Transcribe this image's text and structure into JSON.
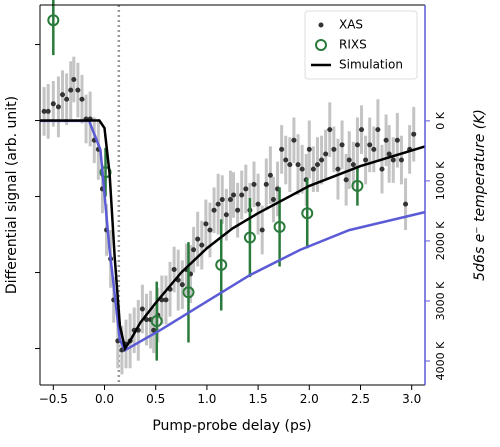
{
  "chart_data": {
    "type": "scatter",
    "xlabel": "Pump-probe delay (ps)",
    "ylabel": "Differential signal (arb. unit)",
    "y2label": "5d6s e⁻ temperature (K)",
    "xlim": [
      -0.63,
      3.13
    ],
    "xticks": [
      {
        "value": -0.5,
        "label": "−0.5"
      },
      {
        "value": 0,
        "label": "0.0"
      },
      {
        "value": 0.5,
        "label": "0.5"
      },
      {
        "value": 1,
        "label": "1.0"
      },
      {
        "value": 1.5,
        "label": "1.5"
      },
      {
        "value": 2,
        "label": "2.0"
      },
      {
        "value": 2.5,
        "label": "2.5"
      },
      {
        "value": 3,
        "label": "3.0"
      }
    ],
    "ylim": [
      -1.74,
      0.76
    ],
    "yticks": [
      0.5,
      0,
      -0.5,
      -1,
      -1.5
    ],
    "y2lim": [
      -1930,
      4400
    ],
    "y2_inverted": true,
    "y2color": "#5b5bd6",
    "y2ticks": [
      {
        "value": 0,
        "label": "0 K"
      },
      {
        "value": 1000,
        "label": "1000 K"
      },
      {
        "value": 2000,
        "label": "2000 K"
      },
      {
        "value": 3000,
        "label": "3000 K"
      },
      {
        "value": 4000,
        "label": "4000 K"
      }
    ],
    "vline": {
      "x": 0.14,
      "color": "#999999"
    },
    "legend": "upper right",
    "series": [
      {
        "name": "XAS",
        "type": "scatter",
        "marker": "dot",
        "color": "#333333",
        "error_color": "#c4c4c4",
        "x": [
          -0.59,
          -0.55,
          -0.5,
          -0.45,
          -0.41,
          -0.37,
          -0.33,
          -0.3,
          -0.26,
          -0.22,
          -0.18,
          -0.14,
          -0.1,
          -0.06,
          -0.02,
          0.02,
          0.06,
          0.09,
          0.13,
          0.17,
          0.21,
          0.25,
          0.29,
          0.33,
          0.37,
          0.41,
          0.45,
          0.48,
          0.52,
          0.56,
          0.6,
          0.64,
          0.68,
          0.72,
          0.76,
          0.8,
          0.84,
          0.87,
          0.91,
          0.95,
          0.99,
          1.03,
          1.07,
          1.11,
          1.15,
          1.19,
          1.23,
          1.26,
          1.3,
          1.34,
          1.38,
          1.42,
          1.46,
          1.5,
          1.54,
          1.58,
          1.62,
          1.65,
          1.69,
          1.73,
          1.77,
          1.81,
          1.85,
          1.89,
          1.93,
          1.97,
          2.0,
          2.04,
          2.08,
          2.12,
          2.16,
          2.2,
          2.24,
          2.28,
          2.32,
          2.36,
          2.39,
          2.43,
          2.47,
          2.51,
          2.55,
          2.59,
          2.63,
          2.67,
          2.71,
          2.75,
          2.78,
          2.82,
          2.86,
          2.9,
          2.94,
          2.98,
          3.02
        ],
        "values": [
          0.06,
          0.06,
          0.11,
          0.09,
          0.17,
          0.14,
          0.2,
          0.27,
          0.2,
          0.14,
          0.01,
          0.01,
          -0.13,
          -0.19,
          -0.45,
          -0.72,
          -0.91,
          -1.18,
          -1.45,
          -1.51,
          -1.47,
          -1.45,
          -1.38,
          -1.38,
          -1.24,
          -1.31,
          -1.31,
          -1.38,
          -1.28,
          -1.18,
          -1.18,
          -1.11,
          -0.98,
          -1.05,
          -1.08,
          -0.98,
          -1.01,
          -0.85,
          -0.78,
          -0.82,
          -0.68,
          -0.72,
          -0.59,
          -0.55,
          -0.52,
          -0.62,
          -0.52,
          -0.49,
          -0.59,
          -0.49,
          -0.45,
          -0.59,
          -0.42,
          -0.55,
          -0.72,
          -0.42,
          -0.36,
          -0.52,
          -0.45,
          -0.19,
          -0.26,
          -0.29,
          -0.13,
          -0.29,
          -0.32,
          -0.39,
          -0.19,
          -0.32,
          -0.29,
          -0.26,
          -0.22,
          -0.06,
          -0.19,
          -0.32,
          -0.16,
          -0.39,
          -0.26,
          -0.29,
          -0.16,
          -0.06,
          -0.26,
          -0.16,
          -0.19,
          -0.06,
          -0.32,
          -0.13,
          -0.22,
          -0.26,
          -0.13,
          -0.26,
          -0.55,
          -0.19,
          -0.09
        ],
        "errors": [
          0.16,
          0.18,
          0.15,
          0.2,
          0.16,
          0.17,
          0.19,
          0.15,
          0.18,
          0.16,
          0.16,
          0.18,
          0.15,
          0.2,
          0.16,
          0.17,
          0.19,
          0.15,
          0.18,
          0.16,
          0.16,
          0.18,
          0.15,
          0.2,
          0.16,
          0.17,
          0.19,
          0.15,
          0.18,
          0.16,
          0.16,
          0.18,
          0.15,
          0.2,
          0.16,
          0.17,
          0.19,
          0.15,
          0.18,
          0.16,
          0.16,
          0.18,
          0.15,
          0.2,
          0.16,
          0.17,
          0.19,
          0.15,
          0.18,
          0.16,
          0.16,
          0.18,
          0.15,
          0.2,
          0.16,
          0.17,
          0.19,
          0.15,
          0.18,
          0.16,
          0.16,
          0.18,
          0.15,
          0.2,
          0.16,
          0.17,
          0.19,
          0.15,
          0.18,
          0.16,
          0.16,
          0.18,
          0.15,
          0.2,
          0.16,
          0.17,
          0.19,
          0.15,
          0.18,
          0.16,
          0.16,
          0.18,
          0.15,
          0.2,
          0.16,
          0.17,
          0.19,
          0.15,
          0.18,
          0.16,
          0.17,
          0.16,
          0.18
        ]
      },
      {
        "name": "RIXS",
        "type": "scatter",
        "marker": "open",
        "color": "#2a7a3b",
        "error_color": "#2a7a3b",
        "x": [
          -0.5,
          0.01,
          0.51,
          0.82,
          1.14,
          1.42,
          1.71,
          1.98,
          2.47
        ],
        "values": [
          0.66,
          -0.34,
          -1.32,
          -1.13,
          -0.95,
          -0.77,
          -0.7,
          -0.61,
          -0.43
        ],
        "errors": [
          0.23,
          0.16,
          0.26,
          0.33,
          0.3,
          0.26,
          0.26,
          0.23,
          0.13
        ]
      },
      {
        "name": "Simulation",
        "type": "line",
        "color": "#000000",
        "x": [
          -0.63,
          -0.05,
          0.0,
          0.05,
          0.1,
          0.15,
          0.2,
          0.25,
          0.35,
          0.5,
          0.75,
          1.0,
          1.25,
          1.5,
          2.0,
          2.5,
          3.13
        ],
        "values": [
          0,
          0,
          -0.05,
          -0.35,
          -0.9,
          -1.35,
          -1.5,
          -1.45,
          -1.33,
          -1.2,
          -1.0,
          -0.84,
          -0.71,
          -0.61,
          -0.43,
          -0.3,
          -0.17
        ]
      },
      {
        "type": "line",
        "axis": "y2",
        "color": "#5b5bd6",
        "x": [
          -0.63,
          -0.15,
          -0.04,
          0.05,
          0.15,
          0.2,
          0.55,
          0.94,
          1.42,
          1.91,
          2.39,
          3.13
        ],
        "values": [
          0,
          0,
          480,
          2150,
          3650,
          3820,
          3480,
          3070,
          2570,
          2150,
          1820,
          1520
        ]
      }
    ]
  }
}
